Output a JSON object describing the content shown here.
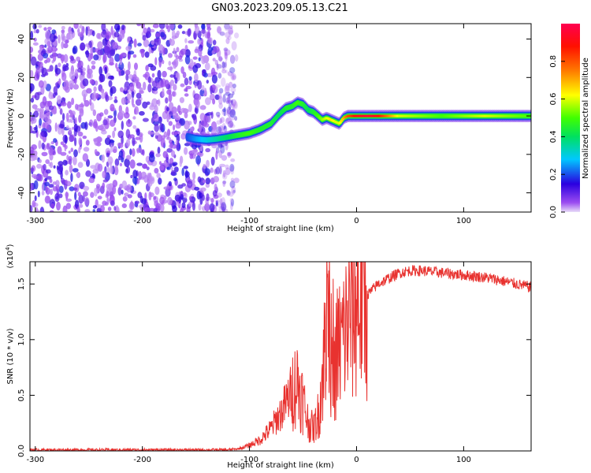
{
  "title": "GN03.2023.209.05.13.C21",
  "chart_data": [
    {
      "type": "heatmap",
      "xlabel": "Height of straight line (km)",
      "ylabel": "Frequency (Hz)",
      "xlim": [
        -305,
        163
      ],
      "ylim": [
        -50,
        48
      ],
      "xticks": [
        -300,
        -200,
        -100,
        0,
        100
      ],
      "yticks": [
        -40,
        -20,
        0,
        20,
        40
      ],
      "noise_region": [
        -305,
        -120
      ],
      "trace": {
        "x": [
          -158,
          -150,
          -140,
          -130,
          -120,
          -110,
          -100,
          -90,
          -80,
          -72,
          -66,
          -60,
          -55,
          -50,
          -45,
          -40,
          -36,
          -32,
          -28,
          -24,
          -20,
          -16,
          -12,
          -8,
          -4,
          0,
          10,
          20,
          40,
          60,
          80,
          100,
          120,
          140,
          163
        ],
        "y": [
          -11,
          -12,
          -12.5,
          -12,
          -11,
          -10,
          -9,
          -7,
          -4,
          1,
          4,
          5,
          7,
          6,
          3,
          2,
          0,
          -2,
          -1,
          -2,
          -3,
          -4,
          -1,
          0,
          0,
          0,
          0,
          0,
          0,
          0,
          0,
          0,
          0,
          0,
          0
        ],
        "amplitude": [
          0.2,
          0.25,
          0.3,
          0.35,
          0.4,
          0.45,
          0.5,
          0.45,
          0.45,
          0.4,
          0.45,
          0.45,
          0.5,
          0.45,
          0.4,
          0.45,
          0.5,
          0.55,
          0.6,
          0.65,
          0.6,
          0.6,
          0.7,
          0.8,
          0.85,
          0.9,
          0.95,
          0.9,
          0.6,
          0.55,
          0.5,
          0.55,
          0.6,
          0.55,
          0.5
        ]
      },
      "colorbar": {
        "label": "Normalized spectral amplitude",
        "range": [
          0.0,
          1.0
        ],
        "ticks": [
          "0.0",
          "0.2",
          "0.4",
          "0.6",
          "0.8"
        ]
      }
    },
    {
      "type": "line",
      "xlabel": "Height of straight line (km)",
      "ylabel": "SNR (10 * v/v)",
      "ylabel_multiplier": "(x10",
      "ylabel_multiplier_exp": "4",
      "ylabel_multiplier_close": ")",
      "xlim": [
        -305,
        163
      ],
      "ylim": [
        0,
        1.7
      ],
      "xticks": [
        -300,
        -200,
        -100,
        0,
        100
      ],
      "yticks": [
        "0.0",
        "0.5",
        "1.0",
        "1.5"
      ],
      "color": "#e8322f",
      "series": [
        {
          "x": [
            -305,
            -250,
            -200,
            -150,
            -120,
            -110,
            -100,
            -90,
            -80,
            -75,
            -70,
            -65,
            -60,
            -55,
            -50,
            -45,
            -40,
            -35,
            -30,
            -27,
            -25,
            -22,
            -20,
            -18,
            -15,
            -10,
            -5,
            0,
            5,
            10,
            20,
            30,
            40,
            50,
            60,
            80,
            100,
            120,
            140,
            163
          ],
          "y": [
            0.01,
            0.01,
            0.01,
            0.01,
            0.01,
            0.02,
            0.05,
            0.1,
            0.2,
            0.28,
            0.35,
            0.45,
            0.55,
            0.62,
            0.45,
            0.25,
            0.2,
            0.35,
            0.9,
            1.55,
            1.1,
            0.55,
            0.8,
            0.9,
            0.95,
            1.1,
            1.25,
            1.35,
            1.38,
            1.4,
            1.5,
            1.55,
            1.6,
            1.62,
            1.62,
            1.6,
            1.58,
            1.56,
            1.52,
            1.47
          ]
        }
      ]
    }
  ]
}
